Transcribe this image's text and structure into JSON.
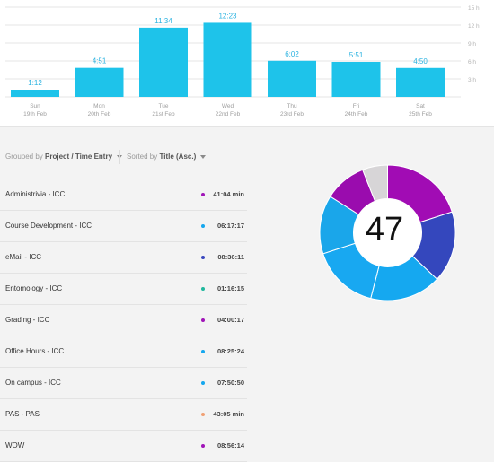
{
  "chart_data": {
    "type": "bar",
    "categories": [
      "Sun 19th Feb",
      "Mon 20th Feb",
      "Tue 21st Feb",
      "Wed 22nd Feb",
      "Thu 23rd Feb",
      "Fri 24th Feb",
      "Sat 25th Feb"
    ],
    "day_names": [
      "Sun",
      "Mon",
      "Tue",
      "Wed",
      "Thu",
      "Fri",
      "Sat"
    ],
    "dates": [
      "19th Feb",
      "20th Feb",
      "21st Feb",
      "22nd Feb",
      "23rd Feb",
      "24th Feb",
      "25th Feb"
    ],
    "values": [
      1.2,
      4.85,
      11.567,
      12.383,
      6.033,
      5.85,
      4.833
    ],
    "value_labels": [
      "1:12",
      "4:51",
      "11:34",
      "12:23",
      "6:02",
      "5:51",
      "4:50"
    ],
    "y_ticks": [
      3,
      6,
      9,
      12,
      15
    ],
    "y_tick_labels": [
      "3 h",
      "6 h",
      "9 h",
      "12 h",
      "15 h"
    ],
    "ylim": [
      0,
      15
    ],
    "grid": true,
    "bar_color": "#1ec3ea"
  },
  "controls": {
    "grouped_prefix": "Grouped by",
    "grouped_value": "Project / Time Entry",
    "sorted_prefix": "Sorted by",
    "sorted_value": "Title (Asc.)"
  },
  "rows": [
    {
      "title": "Administrivia - ICC",
      "time": "41:04 min",
      "color": "#a015b8"
    },
    {
      "title": "Course Development - ICC",
      "time": "06:17:17",
      "color": "#15a7ee"
    },
    {
      "title": "eMail - ICC",
      "time": "08:36:11",
      "color": "#3a47be"
    },
    {
      "title": "Entomology - ICC",
      "time": "01:16:15",
      "color": "#20b89e"
    },
    {
      "title": "Grading - ICC",
      "time": "04:00:17",
      "color": "#a015b8"
    },
    {
      "title": "Office Hours - ICC",
      "time": "08:25:24",
      "color": "#15a7ee"
    },
    {
      "title": "On campus - ICC",
      "time": "07:50:50",
      "color": "#15a7ee"
    },
    {
      "title": "PAS - PAS",
      "time": "43:05 min",
      "color": "#f0a074"
    },
    {
      "title": "WOW",
      "time": "08:56:14",
      "color": "#a015b8"
    }
  ],
  "donut": {
    "count": "47",
    "segments": [
      {
        "value": 20,
        "color": "#a10cb4"
      },
      {
        "value": 17,
        "color": "#3447bd"
      },
      {
        "value": 17,
        "color": "#15a8f0"
      },
      {
        "value": 16,
        "color": "#18a8f1"
      },
      {
        "value": 14,
        "color": "#1aa6ea"
      },
      {
        "value": 10,
        "color": "#9a0cae"
      },
      {
        "value": 6,
        "color": "#d7d5d7"
      }
    ]
  }
}
